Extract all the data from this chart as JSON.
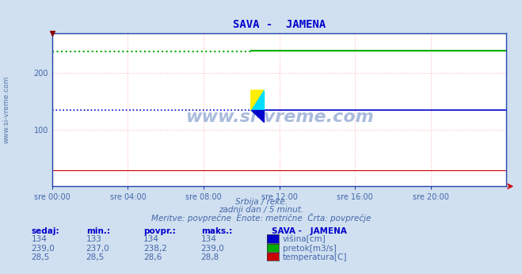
{
  "title": "SAVA -  JAMENA",
  "title_color": "#0000cc",
  "title_fontsize": 10,
  "bg_color": "#d0e0f0",
  "plot_bg_color": "#ffffff",
  "grid_color": "#ffbbbb",
  "grid_linestyle": ":",
  "text_color": "#4466aa",
  "watermark": "www.si-vreme.com",
  "watermark_color": "#aabbdd",
  "subtitle1": "Srbija / reke.",
  "subtitle2": "zadnji dan / 5 minut.",
  "subtitle3": "Meritve: povprečne  Enote: metrične  Črta: povprečje",
  "xticklabels": [
    "sre 00:00",
    "sre 04:00",
    "sre 08:00",
    "sre 12:00",
    "sre 16:00",
    "sre 20:00"
  ],
  "xtick_positions": [
    0,
    4,
    8,
    12,
    16,
    20
  ],
  "ylim": [
    0,
    270
  ],
  "yticks": [
    100,
    200
  ],
  "total_hours": 24,
  "visina_value": 134,
  "visina_break_hour": 10.5,
  "pretok_before": 237.5,
  "pretok_after": 239.0,
  "pretok_break_hour": 10.5,
  "temperatura_value": 28.5,
  "visina_color": "#0000cc",
  "pretok_color": "#00aa00",
  "temperatura_color": "#cc0000",
  "spine_color": "#2244aa",
  "arrow_color": "#cc0000",
  "left_label": "www.si-vreme.com",
  "left_label_color": "#5577aa",
  "legend_title": "SAVA -   JAMENA",
  "legend_labels": [
    "višina[cm]",
    "pretok[m3/s]",
    "temperatura[C]"
  ],
  "legend_colors": [
    "#0000cc",
    "#00aa00",
    "#cc0000"
  ],
  "table_headers": [
    "sedaj:",
    "min.:",
    "povpr.:",
    "maks.:"
  ],
  "table_rows": [
    [
      "134",
      "133",
      "134",
      "134"
    ],
    [
      "239,0",
      "237,0",
      "238,2",
      "239,0"
    ],
    [
      "28,5",
      "28,5",
      "28,6",
      "28,8"
    ]
  ]
}
